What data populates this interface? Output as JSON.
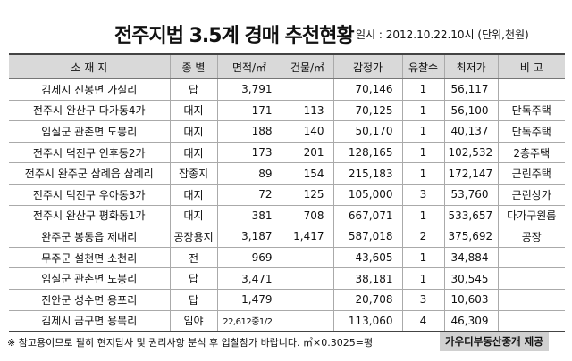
{
  "header": {
    "title": "전주지법 3.5계 경매 추천현황",
    "subtitle": "일시 : 2012.10.22.10시 (단위,천원)"
  },
  "table": {
    "columns": [
      "소 재 지",
      "종 별",
      "면적/㎡",
      "건물/㎡",
      "감정가",
      "유찰수",
      "최저가",
      "비 고"
    ],
    "rows": [
      [
        "김제시 진봉면 가실리",
        "답",
        "3,791",
        null,
        "70,146",
        "1",
        "56,117",
        null
      ],
      [
        "전주시 완산구 다가동4가",
        "대지",
        "171",
        "113",
        "70,125",
        "1",
        "56,100",
        "단독주택"
      ],
      [
        "임실군 관촌면 도봉리",
        "대지",
        "188",
        "140",
        "50,170",
        "1",
        "40,137",
        "단독주택"
      ],
      [
        "전주시 덕진구 인후동2가",
        "대지",
        "173",
        "201",
        "128,165",
        "1",
        "102,532",
        "2층주택"
      ],
      [
        "전주시 완주군 삼례읍 삼례리",
        "잡종지",
        "89",
        "154",
        "215,183",
        "1",
        "172,147",
        "근린주택"
      ],
      [
        "전주시 덕진구 우아동3가",
        "대지",
        "72",
        "125",
        "105,000",
        "3",
        "53,760",
        "근린상가"
      ],
      [
        "전주시 완산구 평화동1가",
        "대지",
        "381",
        "708",
        "667,071",
        "1",
        "533,657",
        "다가구원룸"
      ],
      [
        "완주군 봉동읍 제내리",
        "공장용지",
        "3,187",
        "1,417",
        "587,018",
        "2",
        "375,692",
        "공장"
      ],
      [
        "무주군 설천면 소천리",
        "전",
        "969",
        null,
        "43,605",
        "1",
        "34,884",
        null
      ],
      [
        "임실군 관촌면 도봉리",
        "답",
        "3,471",
        null,
        "38,181",
        "1",
        "30,545",
        null
      ],
      [
        "진안군 성수면 용포리",
        "답",
        "1,479",
        null,
        "20,708",
        "3",
        "10,603",
        null
      ],
      [
        "김제시 금구면 용복리",
        "임야",
        "22,612중1/2",
        null,
        "113,060",
        "4",
        "46,309",
        null
      ]
    ]
  },
  "footer": {
    "note": "※ 참고용이므로 필히 현지답사 및 권리사항 분석 후 입찰참가 바랍니다.  ㎡×0.3025=평",
    "credit": "가우디부동산중개 제공"
  }
}
